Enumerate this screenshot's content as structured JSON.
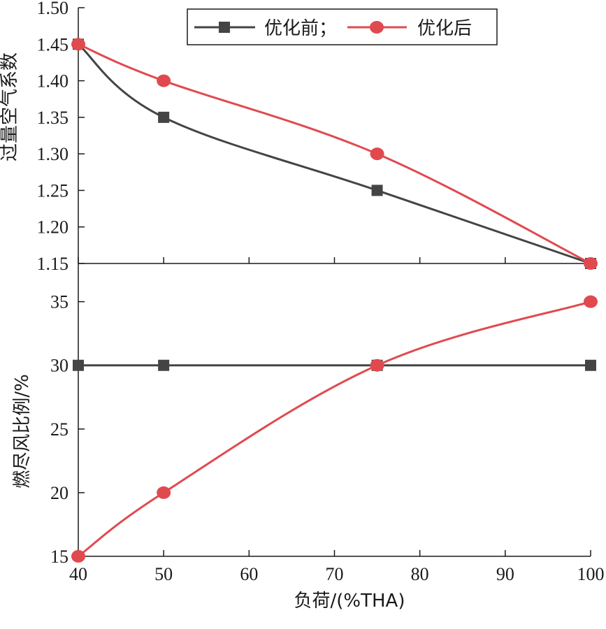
{
  "chart_data": [
    {
      "type": "line",
      "x": [
        40,
        50,
        75,
        100
      ],
      "xlim": [
        40,
        100
      ],
      "ylim": [
        1.15,
        1.5
      ],
      "yticks": [
        "1.15",
        "1.20",
        "1.25",
        "1.30",
        "1.35",
        "1.40",
        "1.45",
        "1.50"
      ],
      "ylabel": "过量空气系数",
      "legend": "top-center",
      "series": [
        {
          "name": "优化前",
          "legend_label": "优化前；",
          "values": [
            1.45,
            1.35,
            1.25,
            1.15
          ],
          "color": "#444444",
          "marker": "square"
        },
        {
          "name": "优化后",
          "legend_label": "优化后",
          "values": [
            1.45,
            1.4,
            1.3,
            1.15
          ],
          "color": "#e04a4f",
          "marker": "circle"
        }
      ]
    },
    {
      "type": "line",
      "x": [
        40,
        50,
        75,
        100
      ],
      "xlim": [
        40,
        100
      ],
      "ylim": [
        15,
        38
      ],
      "yticks": [
        "15",
        "20",
        "25",
        "30",
        "35"
      ],
      "xticks": [
        "40",
        "50",
        "60",
        "70",
        "80",
        "90",
        "100"
      ],
      "ylabel": "燃尽风比例/%",
      "xlabel": "负荷/(%THA)",
      "series": [
        {
          "name": "优化前",
          "values": [
            30,
            30,
            30,
            30
          ],
          "color": "#444444",
          "marker": "square"
        },
        {
          "name": "优化后",
          "values": [
            15,
            20,
            30,
            35
          ],
          "color": "#e04a4f",
          "marker": "circle"
        }
      ]
    }
  ]
}
